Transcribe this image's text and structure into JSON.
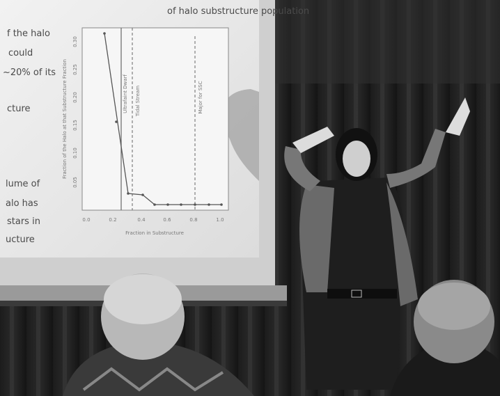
{
  "slide": {
    "title": "of halo substructure population",
    "left_text": [
      "f the halo",
      "could",
      "~20% of its",
      "cture",
      "lume of",
      "alo has",
      "stars in",
      "ucture"
    ],
    "plot": {
      "x_label": "Fraction in Substructure",
      "y_label": "Fraction of the Halo at that Substructure Fraction",
      "x_ticks": [
        "0.0",
        "0.2",
        "0.4",
        "0.6",
        "0.8",
        "1.0"
      ],
      "y_ticks": [
        "0.30",
        "0.25",
        "0.20",
        "0.15",
        "0.10",
        "0.05"
      ],
      "annotations": [
        "Ultrafaint Dwarf",
        "Tidal Stream",
        "Major for SSC"
      ]
    }
  }
}
